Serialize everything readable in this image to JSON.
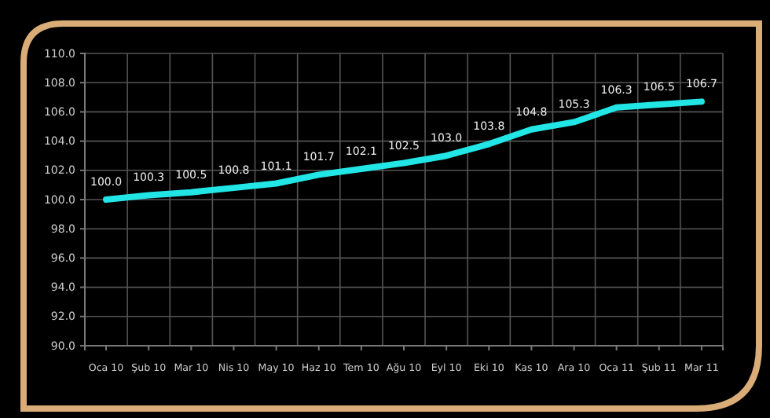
{
  "chart_data": {
    "type": "line",
    "categories": [
      "Oca 10",
      "Şub 10",
      "Mar 10",
      "Nis 10",
      "May 10",
      "Haz 10",
      "Tem 10",
      "Ağu 10",
      "Eyl 10",
      "Eki 10",
      "Kas 10",
      "Ara 10",
      "Oca 11",
      "Şub 11",
      "Mar 11"
    ],
    "series": [
      {
        "color": "#22e6e6",
        "values": [
          100.0,
          100.3,
          100.5,
          100.8,
          101.1,
          101.7,
          102.1,
          102.5,
          103.0,
          103.8,
          104.8,
          105.3,
          106.3,
          106.5,
          106.7
        ],
        "value_labels": [
          "100.0",
          "100.3",
          "100.5",
          "100.8",
          "101.1",
          "101.7",
          "102.1",
          "102.5",
          "103.0",
          "103.8",
          "104.8",
          "105.3",
          "106.3",
          "106.5",
          "106.7"
        ]
      }
    ],
    "ylim": [
      90,
      110
    ],
    "yticks": [
      {
        "value": 90,
        "label": "90.0"
      },
      {
        "value": 92,
        "label": "92.0"
      },
      {
        "value": 94,
        "label": "94.0"
      },
      {
        "value": 96,
        "label": "96.0"
      },
      {
        "value": 98,
        "label": "98.0"
      },
      {
        "value": 100,
        "label": "100.0"
      },
      {
        "value": 102,
        "label": "102.0"
      },
      {
        "value": 104,
        "label": "104.0"
      },
      {
        "value": 106,
        "label": "106.0"
      },
      {
        "value": 108,
        "label": "108.0"
      },
      {
        "value": 110,
        "label": "110.0"
      }
    ],
    "grid": true,
    "marker": "none",
    "line_style": "solid"
  }
}
